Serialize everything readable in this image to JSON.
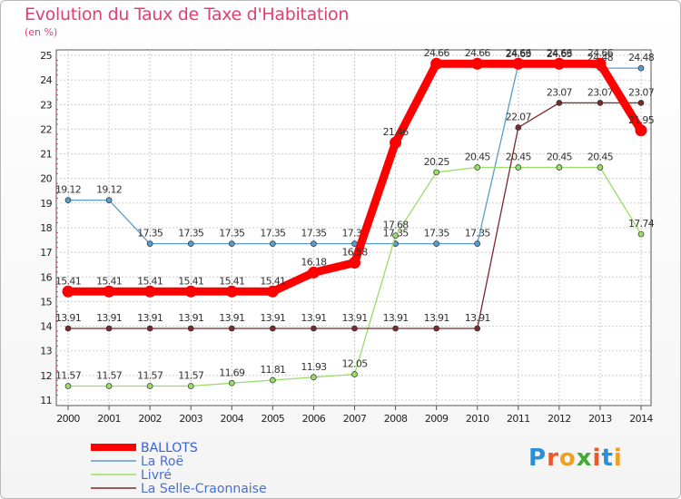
{
  "chart_data": {
    "type": "line",
    "title": "Evolution du Taux de Taxe d'Habitation",
    "unit_label": "(en %)",
    "x": [
      2000,
      2001,
      2002,
      2003,
      2004,
      2005,
      2006,
      2007,
      2008,
      2009,
      2010,
      2011,
      2012,
      2013,
      2014
    ],
    "ylim": [
      11,
      25
    ],
    "yticks": [
      11,
      12,
      13,
      14,
      15,
      16,
      17,
      18,
      19,
      20,
      21,
      22,
      23,
      24,
      25
    ],
    "grid": true,
    "legend_position": "bottom-left",
    "series": [
      {
        "name": "BALLOTS",
        "color": "#ff0000",
        "values": [
          15.41,
          15.41,
          15.41,
          15.41,
          15.41,
          15.41,
          16.18,
          16.58,
          21.46,
          24.66,
          24.66,
          24.66,
          24.66,
          24.66,
          21.95
        ],
        "labels": [
          "15.41",
          "15.41",
          "15.41",
          "15.41",
          "15.41",
          "15.41",
          "16.18",
          "16.58",
          "21.46",
          "24.66",
          "24.66",
          "24.66",
          "24.66",
          "24.66",
          "21.95"
        ]
      },
      {
        "name": "La Roë",
        "color": "#5b9cc8",
        "values": [
          19.12,
          19.12,
          17.35,
          17.35,
          17.35,
          17.35,
          17.35,
          17.35,
          17.35,
          17.35,
          17.35,
          24.63,
          24.63,
          24.48,
          24.48
        ],
        "labels": [
          "19.12",
          "19.12",
          "17.35",
          "17.35",
          "17.35",
          "17.35",
          "17.35",
          "17.35",
          "17.35",
          "17.35",
          "17.35",
          "24.63",
          "24.63",
          "24.48",
          "24.48"
        ]
      },
      {
        "name": "Livré",
        "color": "#99dd66",
        "values": [
          11.57,
          11.57,
          11.57,
          11.57,
          11.69,
          11.81,
          11.93,
          12.05,
          17.68,
          20.25,
          20.45,
          20.45,
          20.45,
          20.45,
          17.74
        ],
        "labels": [
          "11.57",
          "11.57",
          "11.57",
          "11.57",
          "11.69",
          "11.81",
          "11.93",
          "12.05",
          "17.68",
          "20.25",
          "20.45",
          "20.45",
          "20.45",
          "20.45",
          "17.74"
        ]
      },
      {
        "name": "La Selle-Craonnaise",
        "color": "#7a2a2a",
        "values": [
          13.91,
          13.91,
          13.91,
          13.91,
          13.91,
          13.91,
          13.91,
          13.91,
          13.91,
          13.91,
          13.91,
          22.07,
          23.07,
          23.07,
          23.07
        ],
        "labels": [
          "13.91",
          "13.91",
          "13.91",
          "13.91",
          "13.91",
          "13.91",
          "13.91",
          "13.91",
          "13.91",
          "13.91",
          "13.91",
          "22.07",
          "23.07",
          "23.07",
          "23.07"
        ]
      }
    ]
  },
  "logo": {
    "letters": [
      "P",
      "r",
      "o",
      "x",
      "i",
      "t",
      "i"
    ],
    "colors": [
      "#2a8fd8",
      "#e85a2a",
      "#f0a020",
      "#44aa33",
      "#e85a2a",
      "#2a8fd8",
      "#f0a020"
    ]
  }
}
